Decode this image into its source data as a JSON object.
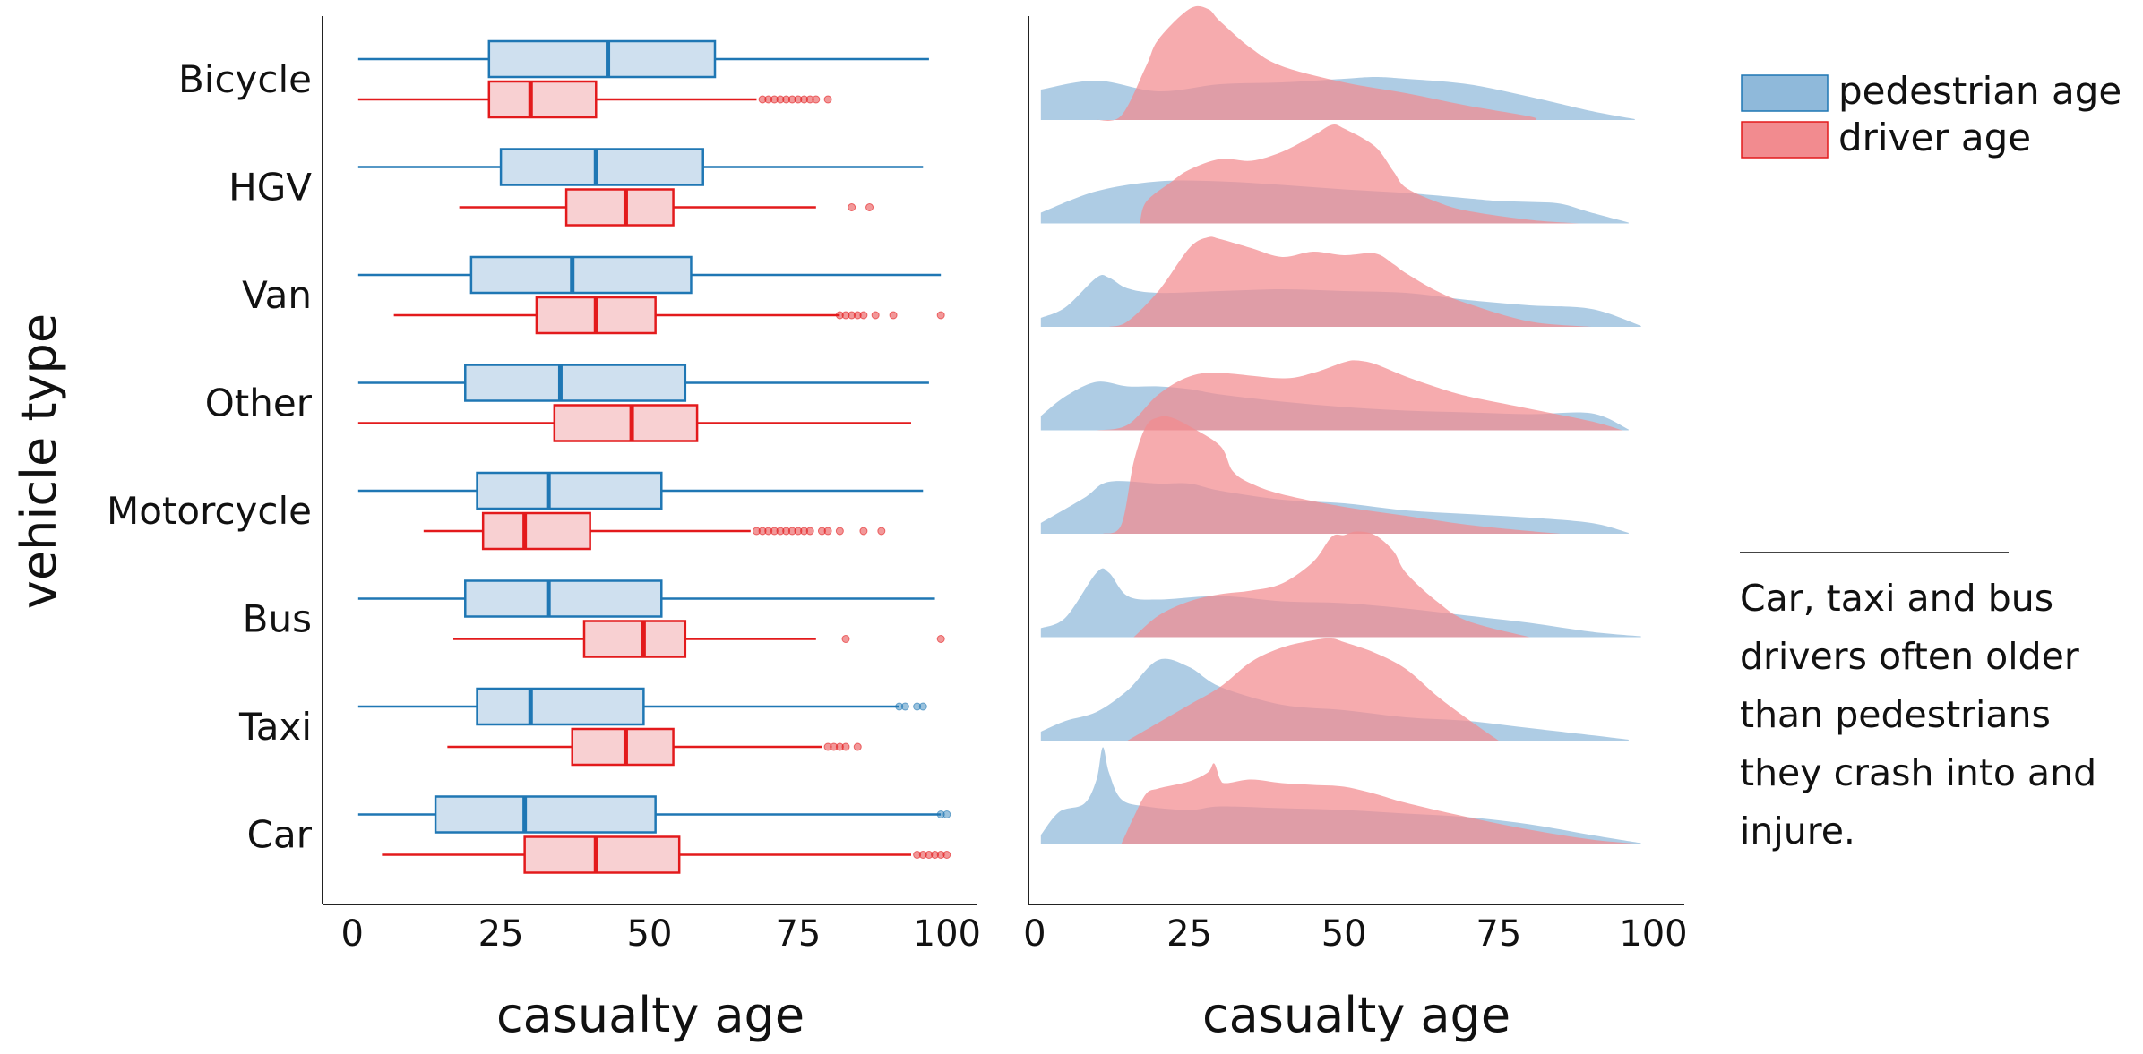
{
  "chart_data": [
    {
      "type": "boxplot",
      "ylabel": "vehicle type",
      "xlabel": "casualty age",
      "xlim": [
        -5,
        105
      ],
      "xticks": [
        0,
        25,
        50,
        75,
        100
      ],
      "categories": [
        "Bicycle",
        "HGV",
        "Van",
        "Other",
        "Motorcycle",
        "Bus",
        "Taxi",
        "Car"
      ],
      "series": [
        {
          "name": "pedestrian age",
          "color": "#1f77b4",
          "fill": "#cfe0ef",
          "boxes": [
            {
              "category": "Bicycle",
              "whislo": 1,
              "q1": 23,
              "med": 43,
              "q3": 61,
              "whishi": 97,
              "fliers": []
            },
            {
              "category": "HGV",
              "whislo": 1,
              "q1": 25,
              "med": 41,
              "q3": 59,
              "whishi": 96,
              "fliers": []
            },
            {
              "category": "Van",
              "whislo": 1,
              "q1": 20,
              "med": 37,
              "q3": 57,
              "whishi": 99,
              "fliers": []
            },
            {
              "category": "Other",
              "whislo": 1,
              "q1": 19,
              "med": 35,
              "q3": 56,
              "whishi": 97,
              "fliers": []
            },
            {
              "category": "Motorcycle",
              "whislo": 1,
              "q1": 21,
              "med": 33,
              "q3": 52,
              "whishi": 96,
              "fliers": []
            },
            {
              "category": "Bus",
              "whislo": 1,
              "q1": 19,
              "med": 33,
              "q3": 52,
              "whishi": 98,
              "fliers": []
            },
            {
              "category": "Taxi",
              "whislo": 1,
              "q1": 21,
              "med": 30,
              "q3": 49,
              "whishi": 92,
              "fliers": [
                92,
                93,
                95,
                96
              ]
            },
            {
              "category": "Car",
              "whislo": 1,
              "q1": 14,
              "med": 29,
              "q3": 51,
              "whishi": 99,
              "fliers": [
                99,
                100
              ]
            }
          ]
        },
        {
          "name": "driver age",
          "color": "#e31a1c",
          "fill": "#f8d0d2",
          "boxes": [
            {
              "category": "Bicycle",
              "whislo": 1,
              "q1": 23,
              "med": 30,
              "q3": 41,
              "whishi": 68,
              "fliers": [
                69,
                70,
                71,
                72,
                73,
                74,
                75,
                76,
                77,
                78,
                80
              ]
            },
            {
              "category": "HGV",
              "whislo": 18,
              "q1": 36,
              "med": 46,
              "q3": 54,
              "whishi": 78,
              "fliers": [
                84,
                87
              ]
            },
            {
              "category": "Van",
              "whislo": 7,
              "q1": 31,
              "med": 41,
              "q3": 51,
              "whishi": 82,
              "fliers": [
                82,
                83,
                84,
                85,
                86,
                88,
                91,
                99
              ]
            },
            {
              "category": "Other",
              "whislo": 1,
              "q1": 34,
              "med": 47,
              "q3": 58,
              "whishi": 94,
              "fliers": []
            },
            {
              "category": "Motorcycle",
              "whislo": 12,
              "q1": 22,
              "med": 29,
              "q3": 40,
              "whishi": 67,
              "fliers": [
                68,
                69,
                70,
                71,
                72,
                73,
                74,
                75,
                76,
                77,
                79,
                80,
                82,
                86,
                89
              ]
            },
            {
              "category": "Bus",
              "whislo": 17,
              "q1": 39,
              "med": 49,
              "q3": 56,
              "whishi": 78,
              "fliers": [
                83,
                99
              ]
            },
            {
              "category": "Taxi",
              "whislo": 16,
              "q1": 37,
              "med": 46,
              "q3": 54,
              "whishi": 79,
              "fliers": [
                80,
                81,
                82,
                83,
                85
              ]
            },
            {
              "category": "Car",
              "whislo": 5,
              "q1": 29,
              "med": 41,
              "q3": 55,
              "whishi": 94,
              "fliers": [
                95,
                96,
                97,
                98,
                99,
                100
              ]
            }
          ]
        }
      ]
    },
    {
      "type": "area",
      "subtype": "ridgeline",
      "xlabel": "casualty age",
      "xlim": [
        -1,
        105
      ],
      "xticks": [
        0,
        25,
        50,
        75,
        100
      ],
      "categories": [
        "Bicycle",
        "HGV",
        "Van",
        "Other",
        "Motorcycle",
        "Bus",
        "Taxi",
        "Car"
      ],
      "series": [
        {
          "name": "pedestrian age",
          "color": "#8fb9da",
          "ridges": [
            {
              "category": "Bicycle",
              "x": [
                1,
                10,
                20,
                30,
                40,
                50,
                55,
                60,
                70,
                80,
                90,
                97
              ],
              "y": [
                0.34,
                0.44,
                0.32,
                0.4,
                0.42,
                0.46,
                0.48,
                0.46,
                0.4,
                0.26,
                0.1,
                0.01
              ]
            },
            {
              "category": "HGV",
              "x": [
                1,
                10,
                20,
                30,
                40,
                50,
                60,
                70,
                75,
                80,
                85,
                90,
                96
              ],
              "y": [
                0.12,
                0.36,
                0.47,
                0.47,
                0.43,
                0.38,
                0.34,
                0.28,
                0.25,
                0.24,
                0.22,
                0.12,
                0.01
              ]
            },
            {
              "category": "Van",
              "x": [
                1,
                5,
                10,
                12,
                15,
                20,
                30,
                40,
                50,
                60,
                70,
                80,
                90,
                98
              ],
              "y": [
                0.1,
                0.22,
                0.55,
                0.55,
                0.43,
                0.38,
                0.4,
                0.42,
                0.4,
                0.38,
                0.3,
                0.24,
                0.2,
                0.01
              ]
            },
            {
              "category": "Other",
              "x": [
                1,
                5,
                10,
                15,
                20,
                25,
                30,
                40,
                50,
                60,
                70,
                80,
                90,
                96
              ],
              "y": [
                0.16,
                0.38,
                0.54,
                0.49,
                0.49,
                0.46,
                0.4,
                0.32,
                0.26,
                0.22,
                0.2,
                0.18,
                0.19,
                0.01
              ]
            },
            {
              "category": "Motorcycle",
              "x": [
                1,
                8,
                12,
                20,
                25,
                30,
                40,
                50,
                60,
                70,
                80,
                90,
                96
              ],
              "y": [
                0.12,
                0.4,
                0.58,
                0.56,
                0.56,
                0.48,
                0.38,
                0.34,
                0.26,
                0.22,
                0.18,
                0.12,
                0.01
              ]
            },
            {
              "category": "Bus",
              "x": [
                1,
                5,
                10,
                12,
                15,
                20,
                30,
                40,
                50,
                60,
                70,
                80,
                90,
                98
              ],
              "y": [
                0.1,
                0.22,
                0.72,
                0.72,
                0.46,
                0.42,
                0.46,
                0.4,
                0.38,
                0.32,
                0.24,
                0.16,
                0.06,
                0.01
              ]
            },
            {
              "category": "Taxi",
              "x": [
                1,
                5,
                10,
                15,
                20,
                25,
                30,
                40,
                50,
                60,
                70,
                80,
                90,
                96
              ],
              "y": [
                0.1,
                0.22,
                0.32,
                0.56,
                0.9,
                0.82,
                0.6,
                0.4,
                0.34,
                0.26,
                0.22,
                0.14,
                0.06,
                0.01
              ]
            },
            {
              "category": "Car",
              "x": [
                1,
                4,
                8,
                10,
                11,
                12,
                14,
                18,
                25,
                30,
                40,
                50,
                60,
                70,
                80,
                90,
                98
              ],
              "y": [
                0.1,
                0.36,
                0.45,
                0.72,
                1.08,
                0.8,
                0.5,
                0.42,
                0.38,
                0.42,
                0.4,
                0.38,
                0.34,
                0.3,
                0.22,
                0.1,
                0.01
              ]
            }
          ]
        },
        {
          "name": "driver age",
          "color": "#f28b8f",
          "ridges": [
            {
              "category": "Bicycle",
              "x": [
                10,
                14,
                18,
                20,
                25,
                28,
                30,
                35,
                40,
                50,
                60,
                70,
                80,
                81
              ],
              "y": [
                0.0,
                0.05,
                0.6,
                0.9,
                1.24,
                1.24,
                1.1,
                0.8,
                0.6,
                0.42,
                0.3,
                0.16,
                0.04,
                0.0
              ]
            },
            {
              "category": "HGV",
              "x": [
                17,
                18,
                22,
                25,
                30,
                35,
                40,
                45,
                48,
                50,
                55,
                58,
                60,
                65,
                70,
                80,
                88
              ],
              "y": [
                0.0,
                0.24,
                0.46,
                0.6,
                0.72,
                0.7,
                0.8,
                0.98,
                1.1,
                1.06,
                0.86,
                0.58,
                0.4,
                0.24,
                0.14,
                0.04,
                0.0
              ]
            },
            {
              "category": "Van",
              "x": [
                12,
                15,
                20,
                25,
                28,
                30,
                35,
                40,
                45,
                50,
                55,
                58,
                60,
                65,
                70,
                80,
                90
              ],
              "y": [
                0.0,
                0.06,
                0.4,
                0.88,
                1.0,
                0.98,
                0.88,
                0.78,
                0.84,
                0.8,
                0.82,
                0.7,
                0.6,
                0.4,
                0.26,
                0.06,
                0.0
              ]
            },
            {
              "category": "Other",
              "x": [
                10,
                15,
                20,
                25,
                30,
                40,
                45,
                50,
                52,
                55,
                60,
                65,
                70,
                80,
                90,
                95
              ],
              "y": [
                0.0,
                0.06,
                0.4,
                0.6,
                0.64,
                0.58,
                0.64,
                0.76,
                0.78,
                0.74,
                0.6,
                0.48,
                0.38,
                0.24,
                0.1,
                0.0
              ]
            },
            {
              "category": "Motorcycle",
              "x": [
                11,
                14,
                16,
                18,
                20,
                22,
                25,
                30,
                32,
                35,
                40,
                50,
                60,
                70,
                80,
                85
              ],
              "y": [
                0.0,
                0.1,
                0.8,
                1.2,
                1.3,
                1.3,
                1.2,
                0.98,
                0.7,
                0.56,
                0.44,
                0.3,
                0.2,
                0.1,
                0.03,
                0.0
              ]
            },
            {
              "category": "Bus",
              "x": [
                16,
                20,
                25,
                30,
                35,
                40,
                45,
                48,
                50,
                52,
                55,
                58,
                60,
                65,
                70,
                80
              ],
              "y": [
                0.0,
                0.24,
                0.4,
                0.48,
                0.52,
                0.6,
                0.84,
                1.12,
                1.14,
                1.18,
                1.14,
                0.96,
                0.72,
                0.4,
                0.18,
                0.0
              ]
            },
            {
              "category": "Taxi",
              "x": [
                15,
                20,
                25,
                30,
                35,
                40,
                45,
                48,
                50,
                55,
                60,
                65,
                70,
                75
              ],
              "y": [
                0.0,
                0.2,
                0.4,
                0.6,
                0.88,
                1.04,
                1.12,
                1.14,
                1.1,
                0.98,
                0.8,
                0.5,
                0.24,
                0.0
              ]
            },
            {
              "category": "Car",
              "x": [
                14,
                16,
                18,
                20,
                25,
                28,
                29,
                30,
                31,
                35,
                40,
                45,
                50,
                55,
                60,
                70,
                80,
                90,
                98
              ],
              "y": [
                0.0,
                0.3,
                0.56,
                0.62,
                0.7,
                0.8,
                0.9,
                0.72,
                0.68,
                0.72,
                0.68,
                0.66,
                0.64,
                0.56,
                0.46,
                0.3,
                0.16,
                0.05,
                0.0
              ]
            }
          ]
        }
      ],
      "legend": {
        "placement": "top-right",
        "entries": [
          "pedestrian age",
          "driver age"
        ]
      }
    }
  ],
  "annotation": "Car, taxi and bus drivers often older than pedestrians they crash into and injure."
}
